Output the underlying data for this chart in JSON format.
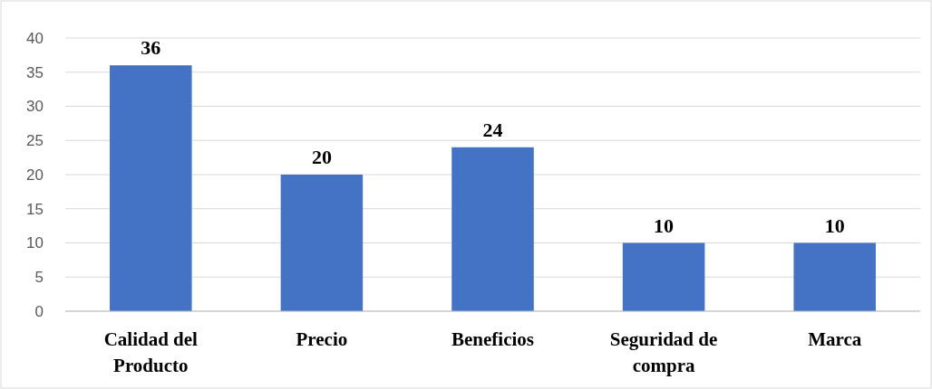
{
  "chart_data": {
    "type": "bar",
    "categories": [
      "Calidad del Producto",
      "Precio",
      "Beneficios",
      "Seguridad de compra",
      "Marca"
    ],
    "values": [
      36,
      20,
      24,
      10,
      10
    ],
    "color": "#4472c4",
    "ylim": [
      0,
      40
    ],
    "yticks": [
      0,
      5,
      10,
      15,
      20,
      25,
      30,
      35,
      40
    ],
    "grid": "y",
    "data_labels": true
  }
}
